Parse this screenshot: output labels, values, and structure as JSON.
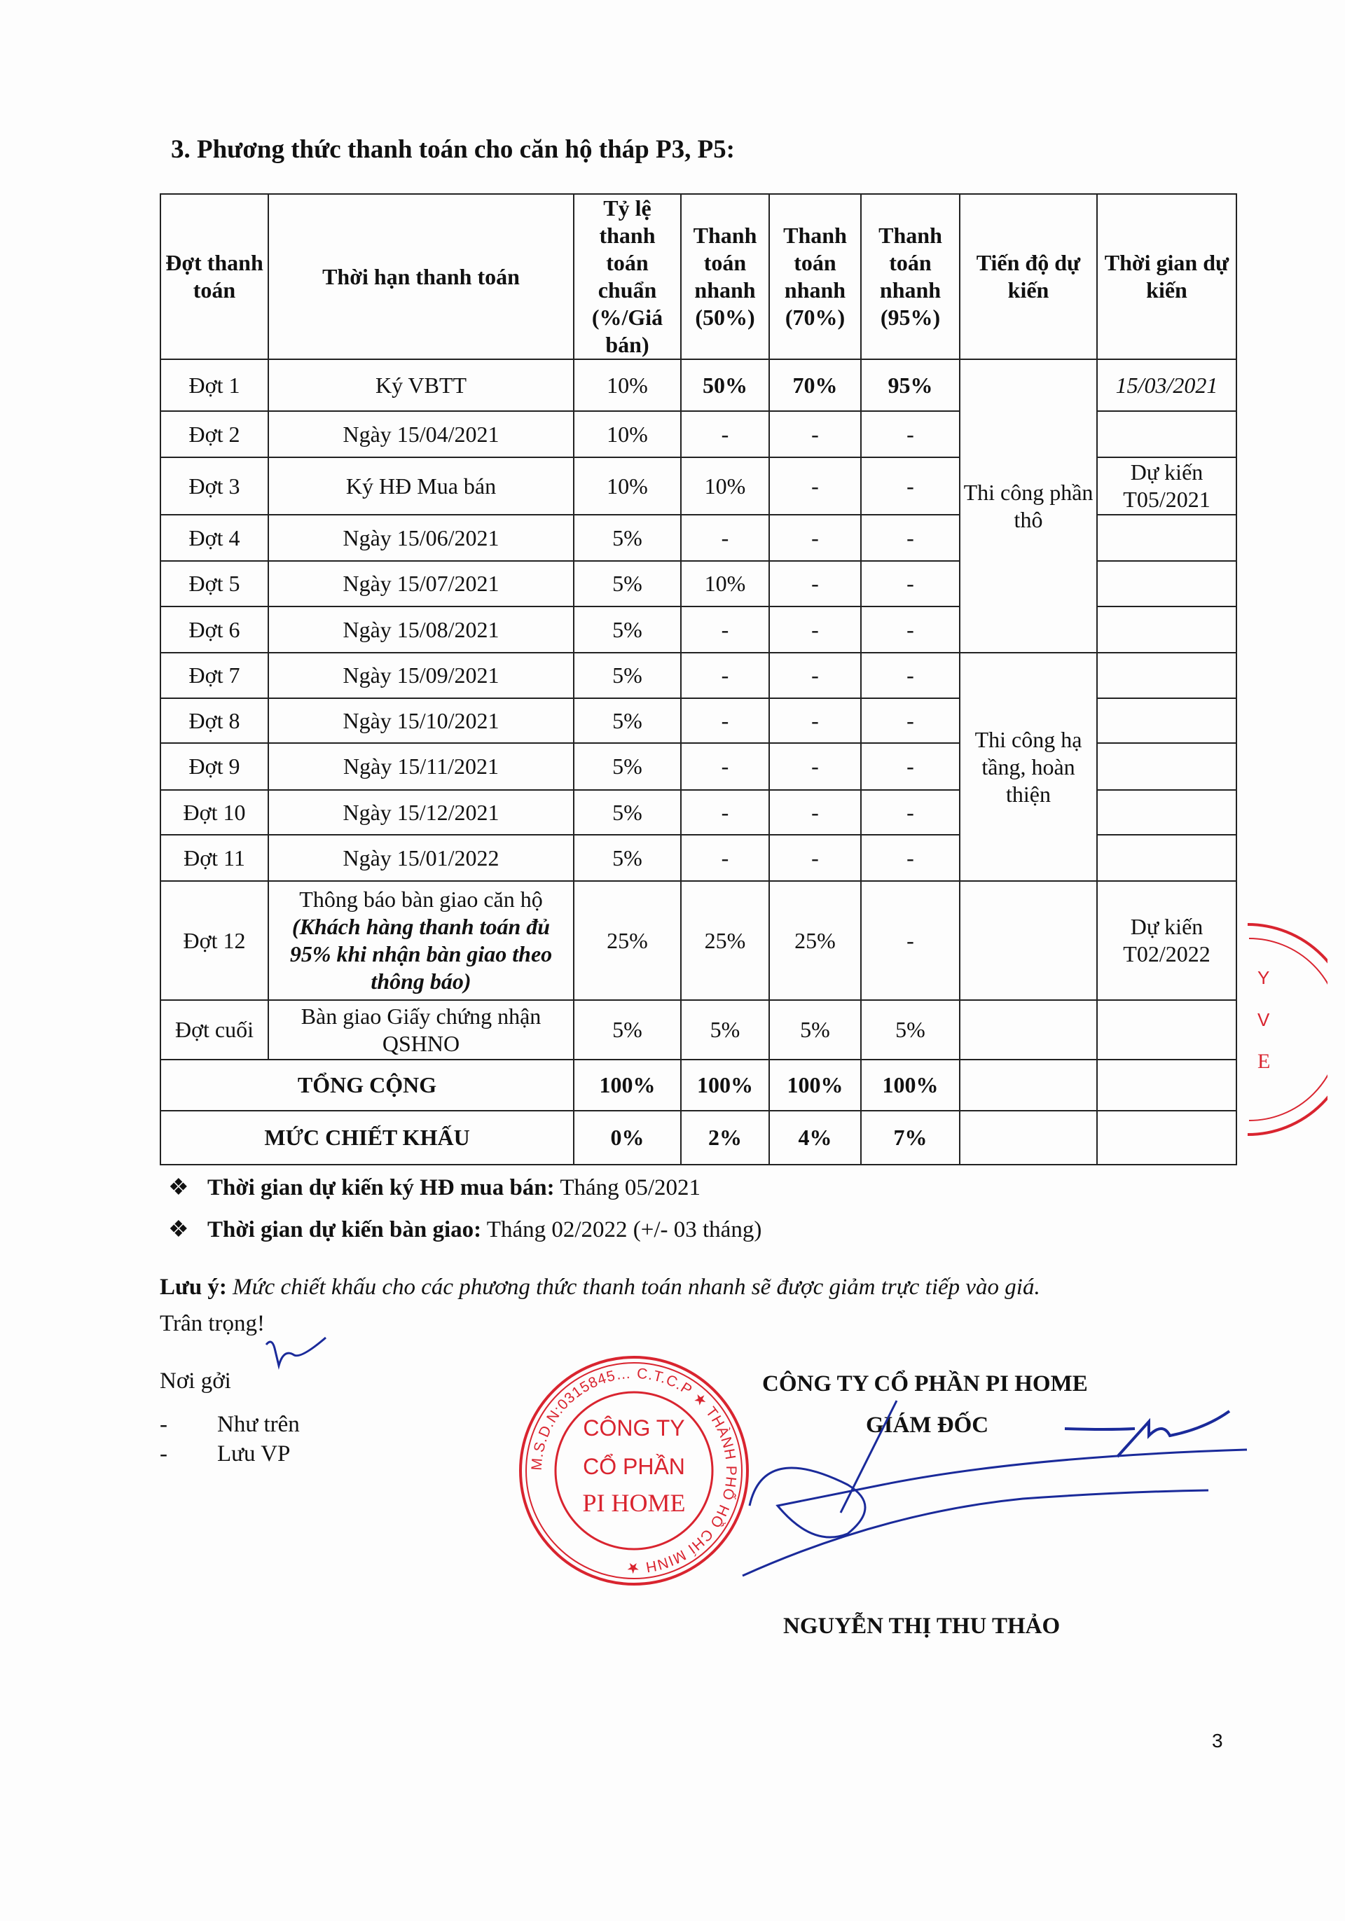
{
  "section_title": "3. Phương thức thanh toán cho căn hộ tháp P3, P5:",
  "table": {
    "headers": [
      "Đợt thanh toán",
      "Thời hạn thanh toán",
      "Tỷ lệ thanh toán chuẩn (%/Giá bán)",
      "Thanh toán nhanh (50%)",
      "Thanh toán nhanh (70%)",
      "Thanh toán nhanh (95%)",
      "Tiến độ dự kiến",
      "Thời gian dự kiến"
    ],
    "rows": [
      {
        "dot": "Đợt 1",
        "han": "Ký VBTT",
        "chuan": "10%",
        "n50": "50%",
        "n70": "70%",
        "n95": "95%",
        "thoigian": "15/03/2021",
        "bold_fast": true
      },
      {
        "dot": "Đợt 2",
        "han": "Ngày 15/04/2021",
        "chuan": "10%",
        "n50": "-",
        "n70": "-",
        "n95": "-",
        "thoigian": ""
      },
      {
        "dot": "Đợt 3",
        "han": "Ký HĐ Mua bán",
        "chuan": "10%",
        "n50": "10%",
        "n70": "-",
        "n95": "-",
        "thoigian": "Dự kiến T05/2021"
      },
      {
        "dot": "Đợt 4",
        "han": "Ngày 15/06/2021",
        "chuan": "5%",
        "n50": "-",
        "n70": "-",
        "n95": "-",
        "thoigian": ""
      },
      {
        "dot": "Đợt 5",
        "han": "Ngày 15/07/2021",
        "chuan": "5%",
        "n50": "10%",
        "n70": "-",
        "n95": "-",
        "thoigian": ""
      },
      {
        "dot": "Đợt 6",
        "han": "Ngày 15/08/2021",
        "chuan": "5%",
        "n50": "-",
        "n70": "-",
        "n95": "-",
        "thoigian": ""
      },
      {
        "dot": "Đợt 7",
        "han": "Ngày 15/09/2021",
        "chuan": "5%",
        "n50": "-",
        "n70": "-",
        "n95": "-",
        "thoigian": ""
      },
      {
        "dot": "Đợt 8",
        "han": "Ngày 15/10/2021",
        "chuan": "5%",
        "n50": "-",
        "n70": "-",
        "n95": "-",
        "thoigian": ""
      },
      {
        "dot": "Đợt 9",
        "han": "Ngày 15/11/2021",
        "chuan": "5%",
        "n50": "-",
        "n70": "-",
        "n95": "-",
        "thoigian": ""
      },
      {
        "dot": "Đợt 10",
        "han": "Ngày 15/12/2021",
        "chuan": "5%",
        "n50": "-",
        "n70": "-",
        "n95": "-",
        "thoigian": ""
      },
      {
        "dot": "Đợt 11",
        "han": "Ngày 15/01/2022",
        "chuan": "5%",
        "n50": "-",
        "n70": "-",
        "n95": "-",
        "thoigian": ""
      },
      {
        "dot": "Đợt 12",
        "han": "Thông báo bàn giao căn hộ",
        "han_note": "(Khách hàng thanh toán đủ 95% khi nhận bàn giao theo thông báo)",
        "chuan": "25%",
        "n50": "25%",
        "n70": "25%",
        "n95": "-",
        "tiendo": "",
        "thoigian": "Dự kiến T02/2022"
      },
      {
        "dot": "Đợt cuối",
        "han": "Bàn giao Giấy chứng nhận QSHNO",
        "chuan": "5%",
        "n50": "5%",
        "n70": "5%",
        "n95": "5%",
        "tiendo": "",
        "thoigian": ""
      }
    ],
    "progress_groups": [
      "Thi công phần thô",
      "Thi công hạ tầng, hoàn thiện"
    ],
    "total": {
      "label": "TỔNG CỘNG",
      "values": [
        "100%",
        "100%",
        "100%",
        "100%"
      ]
    },
    "discount": {
      "label": "MỨC CHIẾT KHẤU",
      "values": [
        "0%",
        "2%",
        "4%",
        "7%"
      ]
    }
  },
  "bullets": [
    {
      "label": "Thời gian dự kiến ký HĐ mua bán:",
      "value": "Tháng 05/2021"
    },
    {
      "label": "Thời gian dự kiến bàn giao:",
      "value": "Tháng 02/2022 (+/- 03 tháng)"
    }
  ],
  "note": {
    "label": "Lưu ý:",
    "text": "Mức chiết khấu cho các phương thức thanh toán nhanh sẽ được giảm trực tiếp vào giá."
  },
  "closing": "Trân trọng!",
  "recipients": {
    "title": "Nơi gởi",
    "items": [
      "Như trên",
      "Lưu VP"
    ]
  },
  "signature": {
    "company": "CÔNG TY CỔ PHẦN PI HOME",
    "position": "GIÁM ĐỐC",
    "name": "NGUYỄN THỊ THU THẢO"
  },
  "stamp": {
    "line1": "CÔNG TY",
    "line2": "CỔ PHẦN",
    "line3": "PI HOME",
    "ring": "M.S.D.N:0315845… C.T.C.P ★ THÀNH PHỐ HỒ CHÍ MINH ★",
    "color": "#d9242f"
  },
  "page_number": "3"
}
